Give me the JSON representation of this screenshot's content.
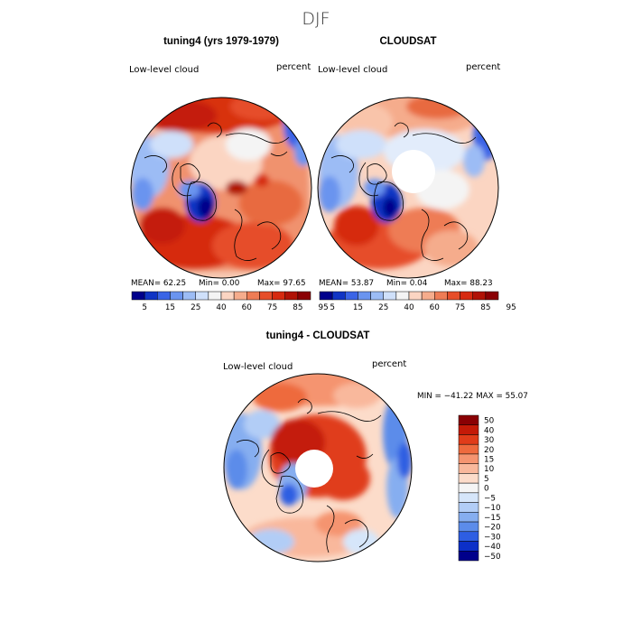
{
  "figure": {
    "title": "DJF"
  },
  "chart_data": [
    {
      "type": "heatmap",
      "title": "tuning4 (yrs 1979-1979)",
      "variable": "Low-level cloud",
      "units": "percent",
      "projection": "north polar stereographic",
      "stats": {
        "mean": "MEAN=  62.25",
        "min": "Min=   0.00",
        "max": "Max=  97.65"
      },
      "colorbar": {
        "labels": [
          "5",
          "15",
          "25",
          "40",
          "60",
          "75",
          "85",
          "95"
        ],
        "colors": [
          "#00008b",
          "#1034c4",
          "#3a64e6",
          "#6a94ef",
          "#9cbcf5",
          "#cfe0fa",
          "#f4f4f4",
          "#fbd5c2",
          "#f5ac8c",
          "#ee7c55",
          "#e64e2a",
          "#d62a10",
          "#b01206",
          "#8a0004"
        ]
      }
    },
    {
      "type": "heatmap",
      "title": "CLOUDSAT",
      "variable": "Low-level cloud",
      "units": "percent",
      "projection": "north polar stereographic",
      "stats": {
        "mean": "MEAN=  53.87",
        "min": "Min=   0.04",
        "max": "Max=  88.23"
      },
      "colorbar": {
        "labels": [
          "5",
          "15",
          "25",
          "40",
          "60",
          "75",
          "85",
          "95"
        ],
        "colors": [
          "#00008b",
          "#1034c4",
          "#3a64e6",
          "#6a94ef",
          "#9cbcf5",
          "#cfe0fa",
          "#f4f4f4",
          "#fbd5c2",
          "#f5ac8c",
          "#ee7c55",
          "#e64e2a",
          "#d62a10",
          "#b01206",
          "#8a0004"
        ]
      }
    },
    {
      "type": "heatmap",
      "title": "tuning4 - CLOUDSAT",
      "variable": "Low-level cloud",
      "units": "percent",
      "projection": "north polar stereographic",
      "minmax": "MIN = −41.22 MAX =  55.07",
      "colorbar": {
        "orientation": "vertical",
        "labels": [
          "50",
          "40",
          "30",
          "20",
          "15",
          "10",
          "5",
          "0",
          "−5",
          "−10",
          "−15",
          "−20",
          "−30",
          "−40",
          "−50"
        ],
        "colors": [
          "#8a0004",
          "#c41a08",
          "#e03c1a",
          "#ee6a3e",
          "#f59470",
          "#f9b89c",
          "#fcdcca",
          "#f5f5f5",
          "#d6e6fa",
          "#b2cdf6",
          "#86aef0",
          "#5c8cea",
          "#2e5ee2",
          "#0c30c8",
          "#00008b"
        ]
      }
    }
  ]
}
